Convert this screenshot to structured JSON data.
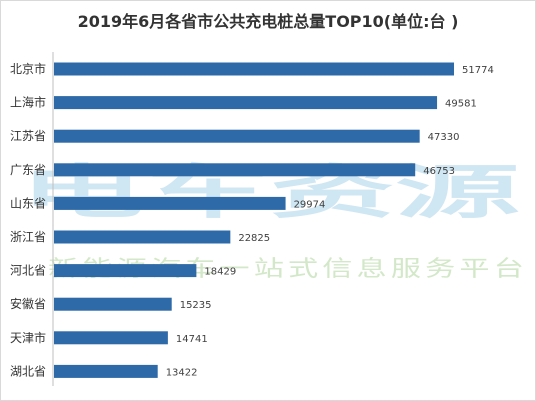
{
  "chart_data": {
    "type": "bar",
    "orientation": "horizontal",
    "title": "2019年6月各省市公共充电桩总量TOP10(单位:台 )",
    "categories": [
      "北京市",
      "上海市",
      "江苏省",
      "广东省",
      "山东省",
      "浙江省",
      "河北省",
      "安徽省",
      "天津市",
      "湖北省"
    ],
    "values": [
      51774,
      49581,
      47330,
      46753,
      29974,
      22825,
      18429,
      15235,
      14741,
      13422
    ],
    "xlim": [
      0,
      55000
    ],
    "grid": false,
    "legend": "none",
    "bar_color": "#2e6aa8"
  },
  "watermark": {
    "brand": "电车资源",
    "tagline": "新能源汽车一站式信息服务平台"
  }
}
